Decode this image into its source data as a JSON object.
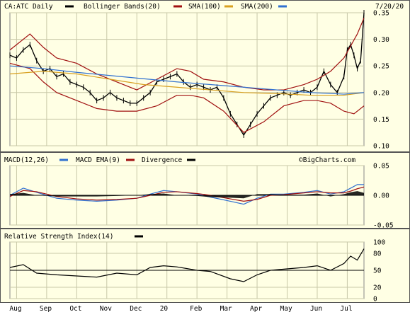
{
  "header": {
    "symbol_label": "CA:ATC Daily",
    "bollinger_label": "Bollinger Bands(20)",
    "sma100_label": "SMA(100)",
    "sma200_label": "SMA(200)",
    "date_label": "7/20/20"
  },
  "macd_header": {
    "macd_label": "MACD(12,26)",
    "ema_label": "MACD EMA(9)",
    "divergence_label": "Divergence",
    "watermark": "©BigCharts.com"
  },
  "rsi_header": {
    "rsi_label": "Relative Strength Index(14)"
  },
  "colors": {
    "panel_bg": "#ffffe4",
    "grid": "#c8c8a8",
    "price": "#000000",
    "bollinger": "#a01010",
    "sma100": "#d8a020",
    "sma200": "#3070d0",
    "macd": "#3070d0",
    "macd_ema": "#a01010",
    "divergence": "#000000"
  },
  "chart_data": [
    {
      "name": "price",
      "type": "line",
      "x_labels": [
        "Aug",
        "Sep",
        "Oct",
        "Nov",
        "Dec",
        "20",
        "Feb",
        "Mar",
        "Apr",
        "May",
        "Jun",
        "Jul"
      ],
      "ylim": [
        0.1,
        0.35
      ],
      "y_ticks": [
        "0.35",
        "0.30",
        "0.25",
        "0.20",
        "0.15",
        "0.10"
      ],
      "grid": true,
      "series": [
        {
          "name": "CA:ATC Daily",
          "points": [
            [
              0,
              0.27
            ],
            [
              2,
              0.265
            ],
            [
              4,
              0.28
            ],
            [
              6,
              0.29
            ],
            [
              8,
              0.26
            ],
            [
              10,
              0.24
            ],
            [
              12,
              0.245
            ],
            [
              14,
              0.23
            ],
            [
              16,
              0.235
            ],
            [
              18,
              0.22
            ],
            [
              20,
              0.215
            ],
            [
              22,
              0.21
            ],
            [
              24,
              0.2
            ],
            [
              26,
              0.185
            ],
            [
              28,
              0.19
            ],
            [
              30,
              0.2
            ],
            [
              32,
              0.19
            ],
            [
              34,
              0.185
            ],
            [
              36,
              0.18
            ],
            [
              38,
              0.18
            ],
            [
              40,
              0.19
            ],
            [
              42,
              0.2
            ],
            [
              44,
              0.22
            ],
            [
              46,
              0.225
            ],
            [
              48,
              0.23
            ],
            [
              50,
              0.235
            ],
            [
              52,
              0.22
            ],
            [
              54,
              0.21
            ],
            [
              56,
              0.215
            ],
            [
              58,
              0.21
            ],
            [
              60,
              0.205
            ],
            [
              62,
              0.21
            ],
            [
              64,
              0.19
            ],
            [
              66,
              0.16
            ],
            [
              68,
              0.14
            ],
            [
              70,
              0.12
            ],
            [
              72,
              0.14
            ],
            [
              74,
              0.16
            ],
            [
              76,
              0.175
            ],
            [
              78,
              0.19
            ],
            [
              80,
              0.195
            ],
            [
              82,
              0.2
            ],
            [
              84,
              0.195
            ],
            [
              86,
              0.2
            ],
            [
              88,
              0.205
            ],
            [
              90,
              0.2
            ],
            [
              92,
              0.21
            ],
            [
              94,
              0.24
            ],
            [
              96,
              0.215
            ],
            [
              98,
              0.2
            ],
            [
              100,
              0.23
            ],
            [
              101,
              0.28
            ],
            [
              102,
              0.29
            ],
            [
              103,
              0.27
            ],
            [
              104,
              0.245
            ],
            [
              105,
              0.26
            ],
            [
              106,
              0.35
            ]
          ]
        },
        {
          "name": "Bollinger Bands(20) upper",
          "points": [
            [
              0,
              0.28
            ],
            [
              6,
              0.31
            ],
            [
              10,
              0.285
            ],
            [
              14,
              0.265
            ],
            [
              20,
              0.255
            ],
            [
              26,
              0.235
            ],
            [
              32,
              0.22
            ],
            [
              38,
              0.205
            ],
            [
              44,
              0.225
            ],
            [
              50,
              0.245
            ],
            [
              54,
              0.24
            ],
            [
              58,
              0.225
            ],
            [
              64,
              0.22
            ],
            [
              70,
              0.21
            ],
            [
              76,
              0.205
            ],
            [
              82,
              0.205
            ],
            [
              88,
              0.215
            ],
            [
              92,
              0.225
            ],
            [
              96,
              0.24
            ],
            [
              100,
              0.265
            ],
            [
              104,
              0.31
            ],
            [
              106,
              0.34
            ]
          ]
        },
        {
          "name": "Bollinger Bands(20) lower",
          "points": [
            [
              0,
              0.255
            ],
            [
              6,
              0.245
            ],
            [
              10,
              0.22
            ],
            [
              14,
              0.2
            ],
            [
              20,
              0.185
            ],
            [
              26,
              0.17
            ],
            [
              32,
              0.165
            ],
            [
              38,
              0.165
            ],
            [
              44,
              0.175
            ],
            [
              50,
              0.195
            ],
            [
              54,
              0.195
            ],
            [
              58,
              0.19
            ],
            [
              64,
              0.165
            ],
            [
              70,
              0.125
            ],
            [
              76,
              0.145
            ],
            [
              82,
              0.175
            ],
            [
              88,
              0.185
            ],
            [
              92,
              0.185
            ],
            [
              96,
              0.18
            ],
            [
              100,
              0.165
            ],
            [
              103,
              0.16
            ],
            [
              106,
              0.175
            ]
          ]
        },
        {
          "name": "SMA(100)",
          "points": [
            [
              0,
              0.235
            ],
            [
              10,
              0.24
            ],
            [
              20,
              0.235
            ],
            [
              30,
              0.225
            ],
            [
              40,
              0.215
            ],
            [
              50,
              0.21
            ],
            [
              60,
              0.205
            ],
            [
              70,
              0.2
            ],
            [
              80,
              0.198
            ],
            [
              90,
              0.195
            ],
            [
              100,
              0.195
            ],
            [
              106,
              0.2
            ]
          ]
        },
        {
          "name": "SMA(200)",
          "points": [
            [
              0,
              0.25
            ],
            [
              10,
              0.245
            ],
            [
              20,
              0.238
            ],
            [
              30,
              0.232
            ],
            [
              40,
              0.226
            ],
            [
              50,
              0.22
            ],
            [
              60,
              0.215
            ],
            [
              70,
              0.21
            ],
            [
              80,
              0.205
            ],
            [
              90,
              0.2
            ],
            [
              100,
              0.197
            ],
            [
              106,
              0.2
            ]
          ]
        }
      ]
    },
    {
      "name": "macd",
      "type": "line",
      "ylim": [
        -0.05,
        0.05
      ],
      "y_ticks": [
        "0.05",
        "0.00",
        "-0.05"
      ],
      "series": [
        {
          "name": "MACD(12,26)",
          "points": [
            [
              0,
              0.0
            ],
            [
              4,
              0.012
            ],
            [
              8,
              0.005
            ],
            [
              14,
              -0.005
            ],
            [
              20,
              -0.008
            ],
            [
              26,
              -0.01
            ],
            [
              32,
              -0.008
            ],
            [
              38,
              -0.005
            ],
            [
              42,
              0.002
            ],
            [
              46,
              0.008
            ],
            [
              50,
              0.006
            ],
            [
              56,
              0.002
            ],
            [
              60,
              -0.003
            ],
            [
              66,
              -0.01
            ],
            [
              70,
              -0.015
            ],
            [
              74,
              -0.005
            ],
            [
              78,
              0.002
            ],
            [
              82,
              0.002
            ],
            [
              88,
              0.005
            ],
            [
              92,
              0.008
            ],
            [
              96,
              0.002
            ],
            [
              100,
              0.006
            ],
            [
              102,
              0.012
            ],
            [
              104,
              0.018
            ],
            [
              106,
              0.018
            ]
          ]
        },
        {
          "name": "MACD EMA(9)",
          "points": [
            [
              0,
              -0.002
            ],
            [
              4,
              0.008
            ],
            [
              8,
              0.006
            ],
            [
              14,
              -0.002
            ],
            [
              20,
              -0.006
            ],
            [
              26,
              -0.008
            ],
            [
              32,
              -0.007
            ],
            [
              38,
              -0.005
            ],
            [
              42,
              0.0
            ],
            [
              46,
              0.005
            ],
            [
              50,
              0.006
            ],
            [
              56,
              0.003
            ],
            [
              60,
              0.0
            ],
            [
              66,
              -0.006
            ],
            [
              70,
              -0.01
            ],
            [
              74,
              -0.007
            ],
            [
              78,
              0.0
            ],
            [
              82,
              0.001
            ],
            [
              88,
              0.004
            ],
            [
              92,
              0.006
            ],
            [
              96,
              0.004
            ],
            [
              100,
              0.004
            ],
            [
              102,
              0.007
            ],
            [
              104,
              0.011
            ],
            [
              106,
              0.014
            ]
          ]
        },
        {
          "name": "Divergence",
          "points": [
            [
              0,
              0.002
            ],
            [
              4,
              0.004
            ],
            [
              8,
              0.0
            ],
            [
              14,
              -0.002
            ],
            [
              20,
              -0.002
            ],
            [
              26,
              -0.002
            ],
            [
              32,
              -0.001
            ],
            [
              38,
              0.0
            ],
            [
              42,
              0.002
            ],
            [
              46,
              0.003
            ],
            [
              50,
              0.0
            ],
            [
              56,
              -0.001
            ],
            [
              60,
              -0.003
            ],
            [
              66,
              -0.004
            ],
            [
              70,
              -0.005
            ],
            [
              74,
              0.002
            ],
            [
              78,
              0.002
            ],
            [
              82,
              0.001
            ],
            [
              88,
              0.001
            ],
            [
              92,
              0.003
            ],
            [
              96,
              -0.002
            ],
            [
              100,
              0.002
            ],
            [
              102,
              0.005
            ],
            [
              104,
              0.007
            ],
            [
              106,
              0.004
            ]
          ]
        }
      ]
    },
    {
      "name": "rsi",
      "type": "line",
      "ylim": [
        0,
        100
      ],
      "y_ticks": [
        "100",
        "80",
        "50",
        "20",
        "0"
      ],
      "series": [
        {
          "name": "Relative Strength Index(14)",
          "points": [
            [
              0,
              55
            ],
            [
              4,
              60
            ],
            [
              8,
              45
            ],
            [
              14,
              42
            ],
            [
              20,
              40
            ],
            [
              26,
              38
            ],
            [
              32,
              45
            ],
            [
              38,
              42
            ],
            [
              42,
              55
            ],
            [
              46,
              58
            ],
            [
              50,
              56
            ],
            [
              56,
              50
            ],
            [
              60,
              48
            ],
            [
              66,
              35
            ],
            [
              70,
              30
            ],
            [
              74,
              42
            ],
            [
              78,
              50
            ],
            [
              82,
              52
            ],
            [
              88,
              55
            ],
            [
              92,
              58
            ],
            [
              96,
              50
            ],
            [
              100,
              62
            ],
            [
              102,
              75
            ],
            [
              104,
              68
            ],
            [
              106,
              88
            ]
          ]
        }
      ]
    }
  ]
}
